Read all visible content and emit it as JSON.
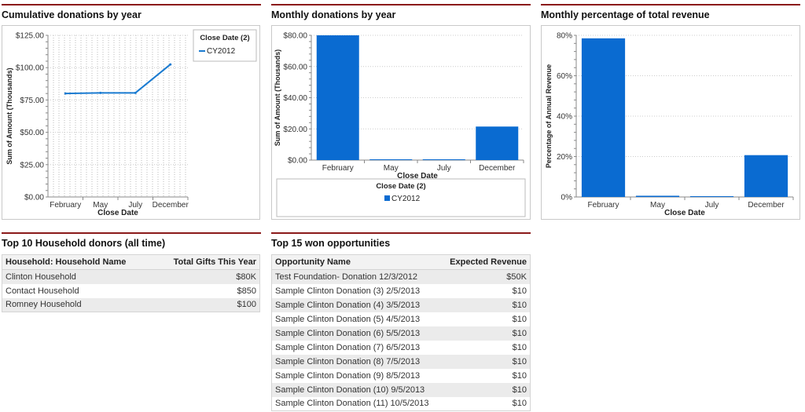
{
  "panels": {
    "cumulative": {
      "title": "Cumulative donations by year"
    },
    "monthly": {
      "title": "Monthly donations by year"
    },
    "percentage": {
      "title": "Monthly percentage of total revenue"
    },
    "donors": {
      "title": "Top 10 Household donors (all time)"
    },
    "opps": {
      "title": "Top 15 won opportunities"
    }
  },
  "chart_data": [
    {
      "type": "line",
      "categories": [
        "February",
        "May",
        "July",
        "December"
      ],
      "series": [
        {
          "name": "CY2012",
          "values": [
            80,
            80.5,
            80.5,
            102.5
          ]
        }
      ],
      "xlabel": "Close Date",
      "ylabel": "Sum of Amount (Thousands)",
      "yticks": [
        "$0.00",
        "$25.00",
        "$50.00",
        "$75.00",
        "$100.00",
        "$125.00"
      ],
      "ylim": [
        0,
        125
      ],
      "legend_title": "Close Date (2)",
      "legend_position": "top-right",
      "color": "#1a7bd1",
      "grid": "dotted"
    },
    {
      "type": "bar",
      "categories": [
        "February",
        "May",
        "July",
        "December"
      ],
      "series": [
        {
          "name": "CY2012",
          "values": [
            80,
            0.45,
            0.2,
            21.5
          ]
        }
      ],
      "xlabel": "Close Date",
      "ylabel": "Sum of Amount (Thousands)",
      "yticks": [
        "$0.00",
        "$20.00",
        "$40.00",
        "$60.00",
        "$80.00"
      ],
      "ylim": [
        0,
        80
      ],
      "legend_title": "Close Date (2)",
      "legend_position": "bottom",
      "color": "#0a6bd1",
      "grid": "dotted"
    },
    {
      "type": "bar",
      "categories": [
        "February",
        "May",
        "July",
        "December"
      ],
      "series": [
        {
          "values": [
            78.5,
            0.6,
            0.25,
            20.7
          ]
        }
      ],
      "xlabel": "Close Date",
      "ylabel": "Percentage of Annual Revenue",
      "yticks": [
        "0%",
        "20%",
        "40%",
        "60%",
        "80%"
      ],
      "ylim": [
        0,
        80
      ],
      "color": "#0a6bd1",
      "grid": "dotted"
    }
  ],
  "donors_table": {
    "headers": [
      "Household: Household Name",
      "Total Gifts This Year"
    ],
    "rows": [
      [
        "Clinton Household",
        "$80K"
      ],
      [
        "Contact Household",
        "$850"
      ],
      [
        "Romney Household",
        "$100"
      ]
    ]
  },
  "opps_table": {
    "headers": [
      "Opportunity Name",
      "Expected Revenue"
    ],
    "rows": [
      [
        "Test Foundation- Donation 12/3/2012",
        "$50K"
      ],
      [
        "Sample Clinton Donation (3) 2/5/2013",
        "$10"
      ],
      [
        "Sample Clinton Donation (4) 3/5/2013",
        "$10"
      ],
      [
        "Sample Clinton Donation (5) 4/5/2013",
        "$10"
      ],
      [
        "Sample Clinton Donation (6) 5/5/2013",
        "$10"
      ],
      [
        "Sample Clinton Donation (7) 6/5/2013",
        "$10"
      ],
      [
        "Sample Clinton Donation (8) 7/5/2013",
        "$10"
      ],
      [
        "Sample Clinton Donation (9) 8/5/2013",
        "$10"
      ],
      [
        "Sample Clinton Donation (10) 9/5/2013",
        "$10"
      ],
      [
        "Sample Clinton Donation (11) 10/5/2013",
        "$10"
      ]
    ]
  }
}
